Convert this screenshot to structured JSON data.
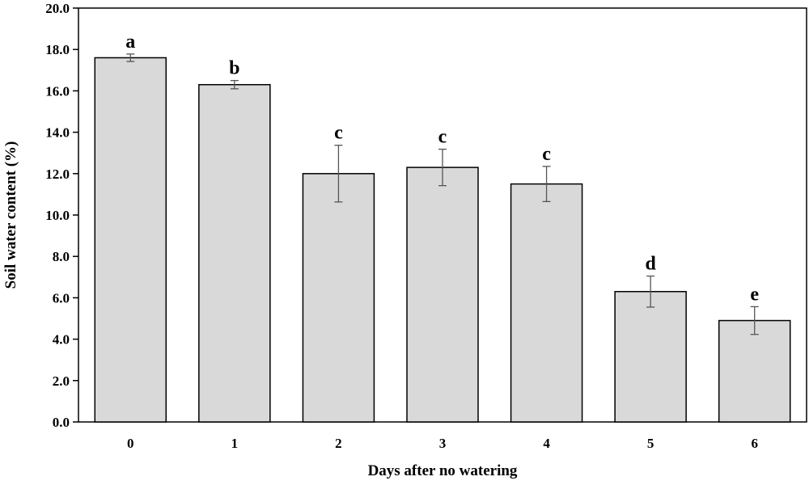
{
  "chart_data": {
    "type": "bar",
    "xlabel": "Days after no watering",
    "ylabel": "Soil water content (%)",
    "categories": [
      "0",
      "1",
      "2",
      "3",
      "4",
      "5",
      "6"
    ],
    "values": [
      17.6,
      16.3,
      12.0,
      12.3,
      11.5,
      6.3,
      4.9
    ],
    "errors": [
      0.18,
      0.2,
      1.37,
      0.88,
      0.85,
      0.75,
      0.67
    ],
    "letters": [
      "a",
      "b",
      "c",
      "c",
      "c",
      "d",
      "e"
    ],
    "ylim": [
      0,
      20
    ],
    "yticks": [
      "0.0",
      "2.0",
      "4.0",
      "6.0",
      "8.0",
      "10.0",
      "12.0",
      "14.0",
      "16.0",
      "18.0",
      "20.0"
    ],
    "grid": false,
    "bar_color": "#d9d9d9",
    "edge_color": "#000000"
  }
}
